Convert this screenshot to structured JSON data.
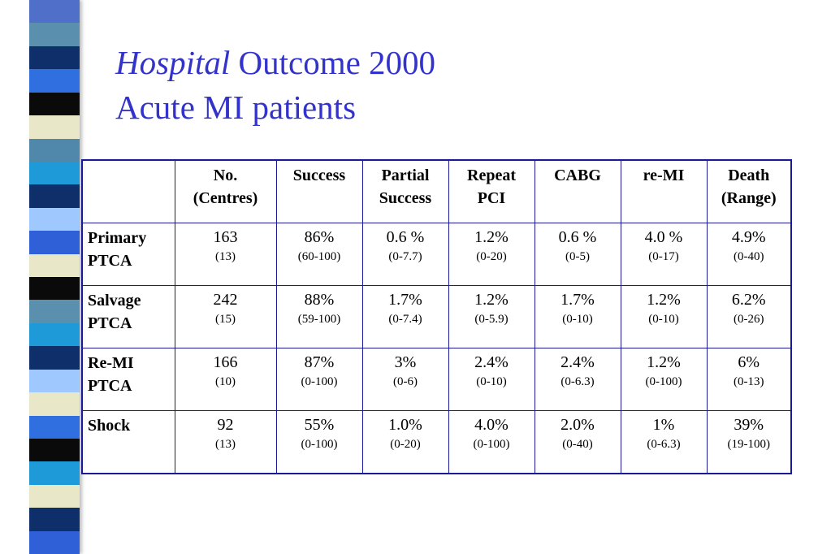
{
  "title": {
    "line1_italic": "Hospital",
    "line1_rest": "Outcome 2000",
    "line2": "Acute MI patients"
  },
  "decoration": {
    "stripe_colors": [
      "#4f6fc9",
      "#5a8fae",
      "#0f2f6a",
      "#2f6fe0",
      "#0a0a0a",
      "#e8e8c8",
      "#4f88aa",
      "#1e9ad8",
      "#0f2f6a",
      "#9fc8ff",
      "#3060d8",
      "#e8e8c8",
      "#0a0a0a",
      "#5a8fae",
      "#1e9ad8",
      "#0f2f6a",
      "#9fc8ff",
      "#e8e8c8",
      "#2f6fe0",
      "#0a0a0a",
      "#1e9ad8",
      "#e8e8c8",
      "#0f2f6a",
      "#3060d8"
    ]
  },
  "table": {
    "header_lines": [
      [
        "",
        ""
      ],
      [
        "No.",
        "(Centres)"
      ],
      [
        "Success",
        ""
      ],
      [
        "Partial",
        "Success"
      ],
      [
        "Repeat",
        "PCI"
      ],
      [
        "CABG",
        ""
      ],
      [
        "re-MI",
        ""
      ],
      [
        "Death",
        "(Range)"
      ]
    ],
    "rows": [
      {
        "label": [
          "Primary",
          "PTCA"
        ],
        "cells": [
          [
            "163",
            "(13)"
          ],
          [
            "86%",
            "(60-100)"
          ],
          [
            "0.6 %",
            "(0-7.7)"
          ],
          [
            "1.2%",
            "(0-20)"
          ],
          [
            "0.6 %",
            "(0-5)"
          ],
          [
            "4.0 %",
            "(0-17)"
          ],
          [
            "4.9%",
            "(0-40)"
          ]
        ]
      },
      {
        "label": [
          "Salvage",
          "PTCA"
        ],
        "cells": [
          [
            "242",
            "(15)"
          ],
          [
            "88%",
            "(59-100)"
          ],
          [
            "1.7%",
            "(0-7.4)"
          ],
          [
            "1.2%",
            "(0-5.9)"
          ],
          [
            "1.7%",
            "(0-10)"
          ],
          [
            "1.2%",
            "(0-10)"
          ],
          [
            "6.2%",
            "(0-26)"
          ]
        ]
      },
      {
        "label": [
          "Re-MI",
          "PTCA"
        ],
        "cells": [
          [
            "166",
            "(10)"
          ],
          [
            "87%",
            "(0-100)"
          ],
          [
            "3%",
            "(0-6)"
          ],
          [
            "2.4%",
            "(0-10)"
          ],
          [
            "2.4%",
            "(0-6.3)"
          ],
          [
            "1.2%",
            "(0-100)"
          ],
          [
            "6%",
            "(0-13)"
          ]
        ]
      },
      {
        "label": [
          "Shock",
          ""
        ],
        "cells": [
          [
            "92",
            "(13)"
          ],
          [
            "55%",
            "(0-100)"
          ],
          [
            "1.0%",
            "(0-20)"
          ],
          [
            "4.0%",
            "(0-100)"
          ],
          [
            "2.0%",
            "(0-40)"
          ],
          [
            "1%",
            "(0-6.3)"
          ],
          [
            "39%",
            "(19-100)"
          ]
        ]
      }
    ]
  }
}
